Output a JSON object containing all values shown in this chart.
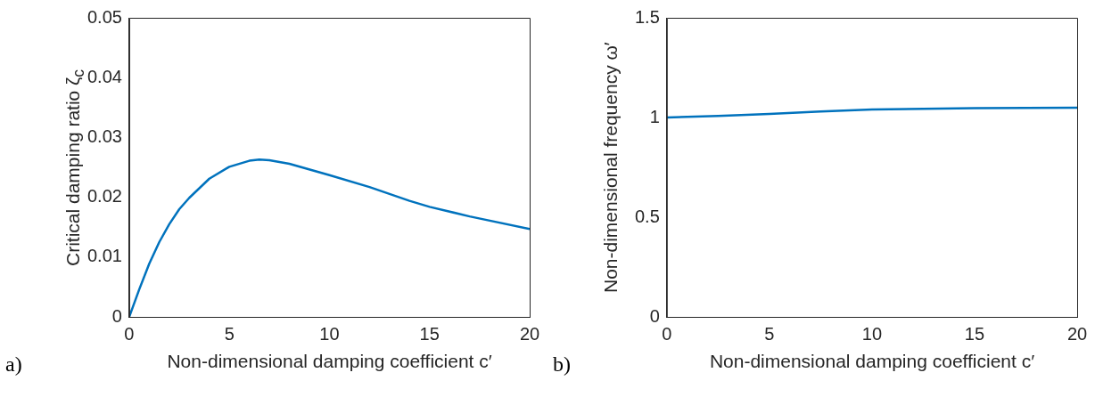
{
  "chart_data": [
    {
      "type": "line",
      "xlabel": "Non-dimensional damping coefficient c′",
      "ylabel": "Critical damping ratio ζ$_{c}$",
      "annotations": [
        "a)"
      ],
      "x": [
        0,
        0.5,
        1,
        1.5,
        2,
        2.5,
        3,
        4,
        5,
        6,
        6.5,
        7,
        8,
        10,
        12,
        14,
        15,
        17,
        20
      ],
      "values": [
        0,
        0.0046,
        0.0089,
        0.0125,
        0.0155,
        0.018,
        0.0199,
        0.0231,
        0.0251,
        0.0261,
        0.0263,
        0.0262,
        0.0256,
        0.0237,
        0.0217,
        0.0194,
        0.0184,
        0.0168,
        0.0147
      ],
      "color": "#0072bd",
      "xlim": [
        0,
        20
      ],
      "ylim": [
        0,
        0.05
      ],
      "xticks": [
        0,
        5,
        10,
        15,
        20
      ],
      "yticks": [
        0,
        0.01,
        0.02,
        0.03,
        0.04,
        0.05
      ]
    },
    {
      "type": "line",
      "xlabel": "Non-dimensional damping coefficient c′",
      "ylabel": "Non-dimensional frequency ω′",
      "annotations": [
        "b)"
      ],
      "x": [
        0,
        2.5,
        5,
        7.5,
        10,
        12.5,
        15,
        17.5,
        20
      ],
      "values": [
        1.0,
        1.008,
        1.018,
        1.03,
        1.04,
        1.044,
        1.047,
        1.048,
        1.049
      ],
      "color": "#0072bd",
      "xlim": [
        0,
        20
      ],
      "ylim": [
        0,
        1.5
      ],
      "xticks": [
        0,
        5,
        10,
        15,
        20
      ],
      "yticks": [
        0,
        0.5,
        1,
        1.5
      ]
    }
  ]
}
